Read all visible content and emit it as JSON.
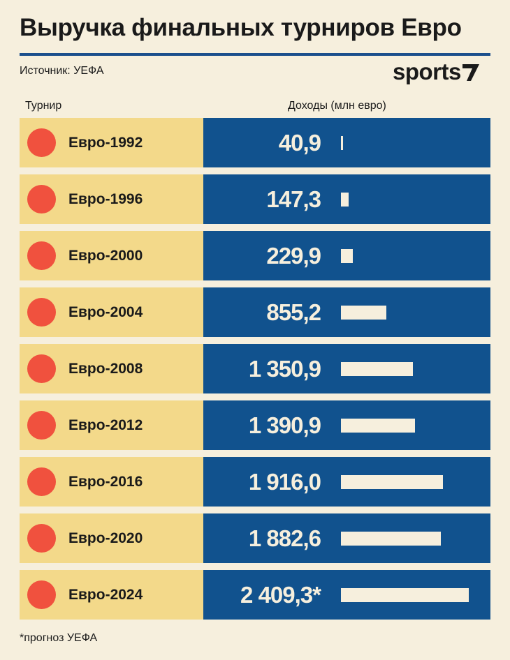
{
  "header": {
    "title": "Выручка финальных турниров Евро",
    "source": "Источник: УЕФА",
    "logo_text": "sports",
    "logo_mark_icon": "slash-mark-icon"
  },
  "columns": {
    "tournament": "Турнир",
    "income": "Доходы (млн евро)"
  },
  "footnote": "*прогноз УЕФА",
  "colors": {
    "background": "#f6efdd",
    "accent_blue": "#11528e",
    "label_yellow": "#f3d98a",
    "dot_red": "#f0513e"
  },
  "chart_data": {
    "type": "bar",
    "orientation": "horizontal",
    "title": "Выручка финальных турниров Евро",
    "xlabel": "Доходы (млн евро)",
    "ylabel": "Турнир",
    "categories": [
      "Евро-1992",
      "Евро-1996",
      "Евро-2000",
      "Евро-2004",
      "Евро-2008",
      "Евро-2012",
      "Евро-2016",
      "Евро-2020",
      "Евро-2024"
    ],
    "values": [
      40.9,
      147.3,
      229.9,
      855.2,
      1350.9,
      1390.9,
      1916.0,
      1882.6,
      2409.3
    ],
    "value_labels": [
      "40,9",
      "147,3",
      "229,9",
      "855,2",
      "1 350,9",
      "1 390,9",
      "1 916,0",
      "1 882,6",
      "2 409,3*"
    ],
    "xlim": [
      0,
      2409.3
    ]
  }
}
